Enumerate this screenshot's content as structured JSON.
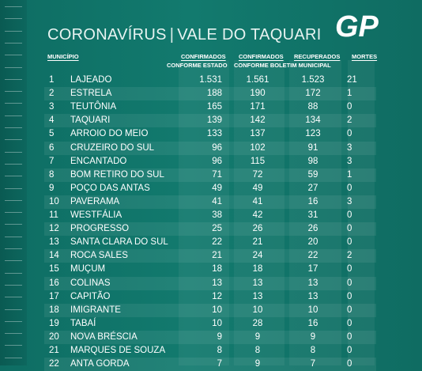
{
  "title": {
    "part1": "CORONAVÍRUS",
    "separator": "|",
    "part2": "VALE DO TAQUARI"
  },
  "logo": {
    "text": "GP"
  },
  "headers": {
    "municipio": "MUNICÍPIO",
    "confirmados": "CONFIRMADOS",
    "confirmados_sub": "CONFORME ESTADO",
    "confirmados2": "CONFIRMADOS",
    "confirmados2_sub": "CONFORME BOLETIM MUNICIPAL",
    "recuperados": "RECUPERADOS",
    "mortes": "MORTES"
  },
  "rows": [
    {
      "n": "1",
      "name": "LAJEADO",
      "conf": "1.531",
      "mun": "1.561",
      "rec": "1.523",
      "dea": "21"
    },
    {
      "n": "2",
      "name": "ESTRELA",
      "conf": "188",
      "mun": "190",
      "rec": "172",
      "dea": "1"
    },
    {
      "n": "3",
      "name": "TEUTÔNIA",
      "conf": "165",
      "mun": "171",
      "rec": "88",
      "dea": "0"
    },
    {
      "n": "4",
      "name": "TAQUARI",
      "conf": "139",
      "mun": "142",
      "rec": "134",
      "dea": "2"
    },
    {
      "n": "5",
      "name": "ARROIO DO MEIO",
      "conf": "133",
      "mun": "137",
      "rec": "123",
      "dea": "0"
    },
    {
      "n": "6",
      "name": "CRUZEIRO DO SUL",
      "conf": "96",
      "mun": "102",
      "rec": "91",
      "dea": "3"
    },
    {
      "n": "7",
      "name": "ENCANTADO",
      "conf": "96",
      "mun": "115",
      "rec": "98",
      "dea": "3"
    },
    {
      "n": "8",
      "name": "BOM RETIRO DO SUL",
      "conf": "71",
      "mun": "72",
      "rec": "59",
      "dea": "1"
    },
    {
      "n": "9",
      "name": "POÇO DAS ANTAS",
      "conf": "49",
      "mun": "49",
      "rec": "27",
      "dea": "0"
    },
    {
      "n": "10",
      "name": "PAVERAMA",
      "conf": "41",
      "mun": "41",
      "rec": "16",
      "dea": "3"
    },
    {
      "n": "11",
      "name": "WESTFÁLIA",
      "conf": "38",
      "mun": "42",
      "rec": "31",
      "dea": "0"
    },
    {
      "n": "12",
      "name": "PROGRESSO",
      "conf": "25",
      "mun": "26",
      "rec": "26",
      "dea": "0"
    },
    {
      "n": "13",
      "name": "SANTA CLARA DO SUL",
      "conf": "22",
      "mun": "21",
      "rec": "20",
      "dea": "0"
    },
    {
      "n": "14",
      "name": "ROCA SALES",
      "conf": "21",
      "mun": "24",
      "rec": "22",
      "dea": "2"
    },
    {
      "n": "15",
      "name": "MUÇUM",
      "conf": "18",
      "mun": "18",
      "rec": "17",
      "dea": "0"
    },
    {
      "n": "16",
      "name": "COLINAS",
      "conf": "13",
      "mun": "13",
      "rec": "13",
      "dea": "0"
    },
    {
      "n": "17",
      "name": "CAPITÃO",
      "conf": "12",
      "mun": "13",
      "rec": "13",
      "dea": "0"
    },
    {
      "n": "18",
      "name": "IMIGRANTE",
      "conf": "10",
      "mun": "10",
      "rec": "10",
      "dea": "0"
    },
    {
      "n": "19",
      "name": "TABAÍ",
      "conf": "10",
      "mun": "28",
      "rec": "16",
      "dea": "0"
    },
    {
      "n": "20",
      "name": "NOVA BRÉSCIA",
      "conf": "9",
      "mun": "9",
      "rec": "9",
      "dea": "0"
    },
    {
      "n": "21",
      "name": "MARQUES DE SOUZA",
      "conf": "8",
      "mun": "8",
      "rec": "8",
      "dea": "0"
    },
    {
      "n": "22",
      "name": "ANTA GORDA",
      "conf": "7",
      "mun": "9",
      "rec": "7",
      "dea": "0"
    }
  ]
}
